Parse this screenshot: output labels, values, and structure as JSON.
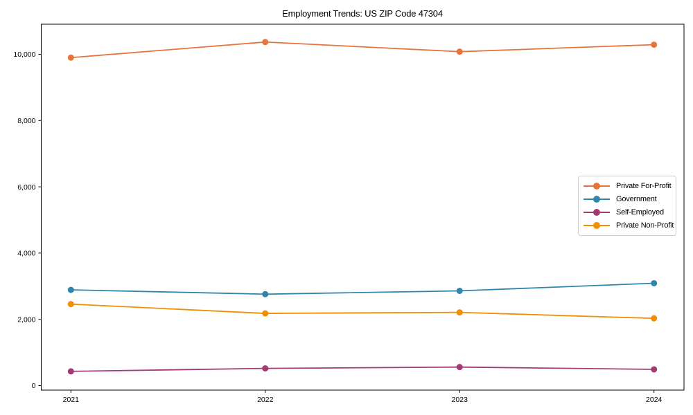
{
  "figure": {
    "background": "#ffffff",
    "spine_color": "#000000",
    "text_color": "#000000"
  },
  "chart_data": {
    "type": "line",
    "title": "Employment Trends: US ZIP Code 47304",
    "categories": [
      "2021",
      "2022",
      "2023",
      "2024"
    ],
    "series": [
      {
        "name": "Private For-Profit",
        "color": "#e8743b",
        "values": [
          9900,
          10370,
          10080,
          10290
        ]
      },
      {
        "name": "Government",
        "color": "#2e86ab",
        "values": [
          2890,
          2760,
          2860,
          3090
        ]
      },
      {
        "name": "Self-Employed",
        "color": "#a23b72",
        "values": [
          430,
          520,
          560,
          490
        ]
      },
      {
        "name": "Private Non-Profit",
        "color": "#f18f01",
        "values": [
          2460,
          2180,
          2210,
          2030
        ]
      }
    ],
    "xlabel": "",
    "ylabel": "",
    "xtick_labels": [
      "2021",
      "2022",
      "2023",
      "2024"
    ],
    "yticks": [
      0,
      2000,
      4000,
      6000,
      8000,
      10000
    ],
    "ytick_labels": [
      "0",
      "2,000",
      "4,000",
      "6,000",
      "8,000",
      "10,000"
    ],
    "ylim": [
      -140,
      10900
    ],
    "grid": false,
    "legend_position": "center right",
    "marker": "circle"
  }
}
